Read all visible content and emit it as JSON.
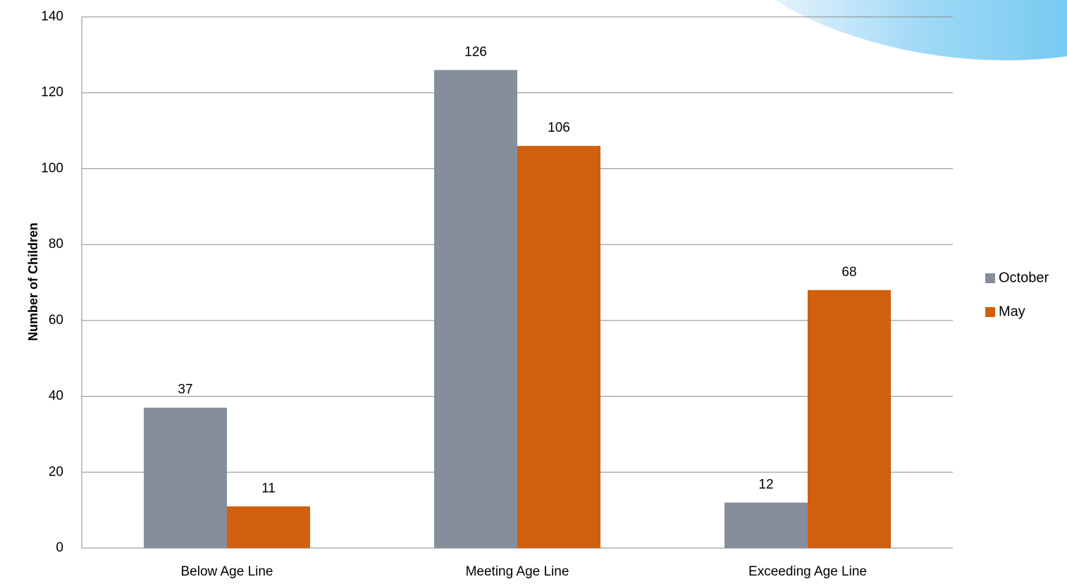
{
  "chart_data": {
    "type": "bar",
    "y_axis_label": "Number  of Children",
    "categories": [
      "Below Age Line",
      "Meeting Age Line",
      "Exceeding Age Line"
    ],
    "series": [
      {
        "name": "October",
        "color": "#868e9c",
        "values": [
          37,
          126,
          12
        ]
      },
      {
        "name": "May",
        "color": "#d0600d",
        "values": [
          11,
          106,
          68
        ]
      }
    ],
    "ylim": [
      0,
      140
    ],
    "yticks": [
      0,
      20,
      40,
      60,
      80,
      100,
      120,
      140
    ],
    "grid": true,
    "legend": "right"
  }
}
